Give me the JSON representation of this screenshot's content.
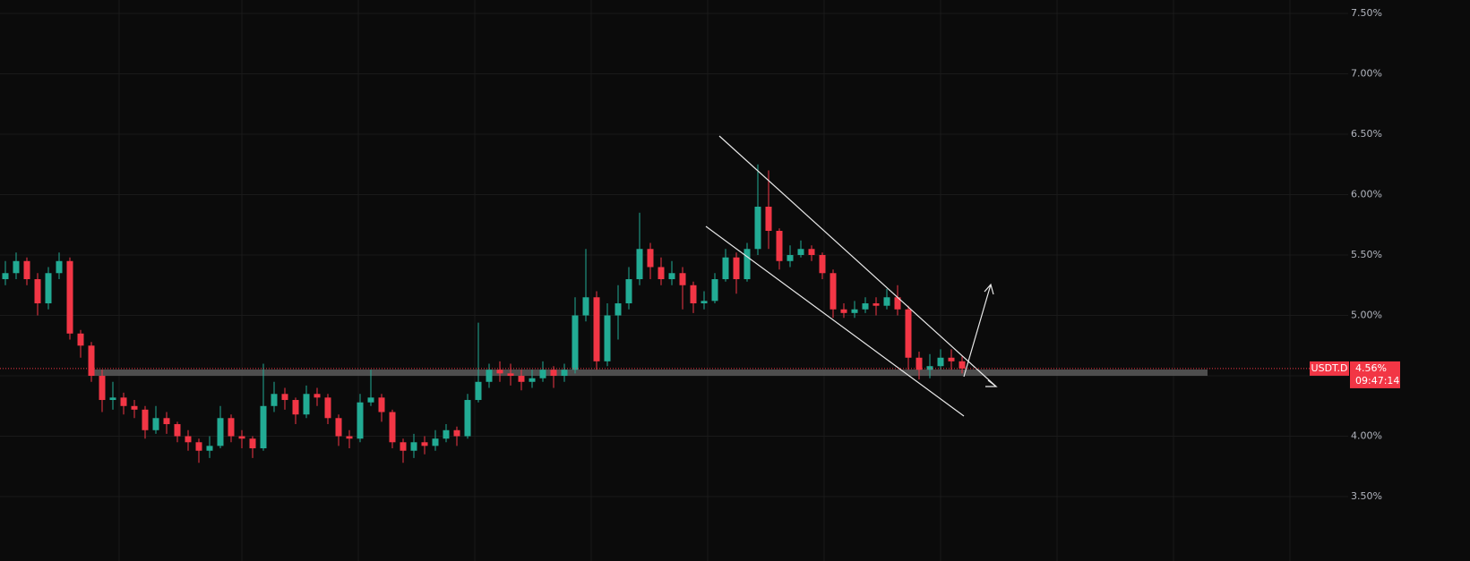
{
  "chart_data": {
    "type": "candlestick",
    "symbol": "USDT.D",
    "countdown": "09:47:14",
    "last_price": {
      "value": 4.56,
      "label": "4.56%"
    },
    "up_color": "#22ab94",
    "down_color": "#f23645",
    "grid": true,
    "ylim": [
      2.967,
      7.611
    ],
    "yticks": [
      {
        "value": 3.5,
        "label": "3.50%"
      },
      {
        "value": 4.0,
        "label": "4.00%"
      },
      {
        "value": 4.5,
        "label": "4.50%"
      },
      {
        "value": 5.0,
        "label": "5.00%"
      },
      {
        "value": 5.5,
        "label": "5.50%"
      },
      {
        "value": 6.0,
        "label": "6.00%"
      },
      {
        "value": 6.5,
        "label": "6.50%"
      },
      {
        "value": 7.0,
        "label": "7.00%"
      },
      {
        "value": 7.5,
        "label": "7.50%"
      }
    ],
    "open": [
      5.3,
      5.35,
      5.45,
      5.3,
      5.1,
      5.35,
      5.45,
      4.85,
      4.75,
      4.5,
      4.3,
      4.32,
      4.25,
      4.22,
      4.05,
      4.15,
      4.1,
      4.0,
      3.95,
      3.88,
      3.92,
      4.15,
      4.0,
      3.98,
      3.9,
      4.25,
      4.35,
      4.3,
      4.18,
      4.35,
      4.32,
      4.15,
      4.0,
      3.98,
      4.28,
      4.32,
      4.2,
      3.95,
      3.88,
      3.95,
      3.92,
      3.98,
      4.05,
      4.0,
      4.3,
      4.45,
      4.55,
      4.52,
      4.5,
      4.45,
      4.48,
      4.55,
      4.5,
      4.55,
      5.0,
      5.15,
      4.62,
      5.0,
      5.1,
      5.3,
      5.55,
      5.4,
      5.3,
      5.35,
      5.25,
      5.1,
      5.12,
      5.3,
      5.48,
      5.3,
      5.55,
      5.9,
      5.7,
      5.45,
      5.5,
      5.55,
      5.5,
      5.35,
      5.05,
      5.02,
      5.05,
      5.1,
      5.08,
      5.15,
      5.05,
      4.65,
      4.55,
      4.58,
      4.65,
      4.62
    ],
    "high": [
      5.45,
      5.52,
      5.48,
      5.35,
      5.4,
      5.52,
      5.48,
      4.88,
      4.78,
      4.55,
      4.45,
      4.36,
      4.3,
      4.25,
      4.25,
      4.2,
      4.12,
      4.05,
      3.98,
      4.0,
      4.25,
      4.18,
      4.05,
      4.0,
      4.6,
      4.45,
      4.4,
      4.32,
      4.42,
      4.4,
      4.35,
      4.18,
      4.05,
      4.35,
      4.55,
      4.35,
      4.22,
      3.98,
      4.02,
      4.0,
      4.05,
      4.1,
      4.08,
      4.35,
      4.94,
      4.6,
      4.62,
      4.6,
      4.55,
      4.55,
      4.62,
      4.58,
      4.6,
      5.15,
      5.55,
      5.2,
      5.1,
      5.25,
      5.4,
      5.85,
      5.6,
      5.48,
      5.45,
      5.4,
      5.28,
      5.2,
      5.35,
      5.55,
      5.52,
      5.6,
      6.25,
      6.2,
      5.72,
      5.58,
      5.62,
      5.58,
      5.52,
      5.38,
      5.1,
      5.12,
      5.15,
      5.15,
      5.22,
      5.25,
      5.08,
      4.7,
      4.68,
      4.72,
      4.72,
      4.66
    ],
    "low": [
      5.25,
      5.3,
      5.25,
      5.0,
      5.05,
      5.3,
      4.8,
      4.65,
      4.45,
      4.2,
      4.22,
      4.18,
      4.15,
      3.98,
      4.02,
      4.02,
      3.95,
      3.88,
      3.78,
      3.82,
      3.9,
      3.95,
      3.9,
      3.82,
      3.88,
      4.2,
      4.22,
      4.1,
      4.15,
      4.25,
      4.1,
      3.92,
      3.9,
      3.95,
      4.25,
      4.12,
      3.9,
      3.78,
      3.82,
      3.85,
      3.88,
      3.95,
      3.92,
      3.98,
      4.28,
      4.4,
      4.45,
      4.42,
      4.38,
      4.4,
      4.45,
      4.4,
      4.45,
      4.52,
      4.95,
      4.55,
      4.58,
      4.8,
      5.05,
      5.25,
      5.3,
      5.25,
      5.25,
      5.05,
      5.02,
      5.05,
      5.1,
      5.28,
      5.18,
      5.28,
      5.5,
      5.55,
      5.38,
      5.4,
      5.48,
      5.45,
      5.3,
      4.98,
      4.98,
      4.98,
      5.02,
      5.0,
      5.05,
      5.0,
      4.55,
      4.47,
      4.48,
      4.55,
      4.55,
      4.52
    ],
    "close": [
      5.35,
      5.45,
      5.3,
      5.1,
      5.35,
      5.45,
      4.85,
      4.75,
      4.5,
      4.3,
      4.32,
      4.25,
      4.22,
      4.05,
      4.15,
      4.1,
      4.0,
      3.95,
      3.88,
      3.92,
      4.15,
      4.0,
      3.98,
      3.9,
      4.25,
      4.35,
      4.3,
      4.18,
      4.35,
      4.32,
      4.15,
      4.0,
      3.98,
      4.28,
      4.32,
      4.2,
      3.95,
      3.88,
      3.95,
      3.92,
      3.98,
      4.05,
      4.0,
      4.3,
      4.45,
      4.55,
      4.52,
      4.5,
      4.45,
      4.48,
      4.55,
      4.5,
      4.55,
      5.0,
      5.15,
      4.62,
      5.0,
      5.1,
      5.3,
      5.55,
      5.4,
      5.3,
      5.35,
      5.25,
      5.1,
      5.12,
      5.3,
      5.48,
      5.3,
      5.55,
      5.9,
      5.7,
      5.45,
      5.5,
      5.55,
      5.5,
      5.35,
      5.05,
      5.02,
      5.05,
      5.1,
      5.08,
      5.15,
      5.05,
      4.65,
      4.55,
      4.58,
      4.65,
      4.62,
      4.56
    ]
  }
}
